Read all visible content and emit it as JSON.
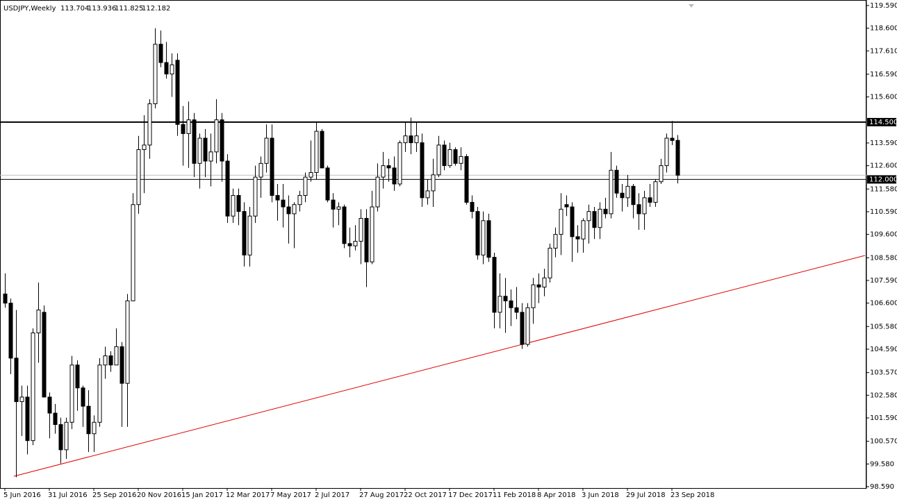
{
  "chart_data": {
    "type": "candlestick",
    "symbol": "USDJPY,Weekly",
    "categories": [
      "5 Jun 2016",
      null,
      null,
      null,
      null,
      null,
      null,
      null,
      "31 Jul 2016",
      null,
      null,
      null,
      null,
      null,
      null,
      null,
      "25 Sep 2016",
      null,
      null,
      null,
      null,
      null,
      null,
      null,
      "20 Nov 2016",
      null,
      null,
      null,
      null,
      null,
      null,
      null,
      "15 Jan 2017",
      null,
      null,
      null,
      null,
      null,
      null,
      null,
      "12 Mar 2017",
      null,
      null,
      null,
      null,
      null,
      null,
      null,
      "7 May 2017",
      null,
      null,
      null,
      null,
      null,
      null,
      null,
      "2 Jul 2017",
      null,
      null,
      null,
      null,
      null,
      null,
      null,
      "27 Aug 2017",
      null,
      null,
      null,
      null,
      null,
      null,
      null,
      "22 Oct 2017",
      null,
      null,
      null,
      null,
      null,
      null,
      null,
      "17 Dec 2017",
      null,
      null,
      null,
      null,
      null,
      null,
      null,
      "11 Feb 2018",
      null,
      null,
      null,
      null,
      null,
      null,
      null,
      "8 Apr 2018",
      null,
      null,
      null,
      null,
      null,
      null,
      null,
      "3 Jun 2018",
      null,
      null,
      null,
      null,
      null,
      null,
      null,
      "29 Jul 2018",
      null,
      null,
      null,
      null,
      null,
      null,
      null,
      "23 Sep 2018",
      null
    ],
    "open": [
      107.0,
      106.6,
      104.2,
      102.3,
      102.5,
      100.6,
      105.3,
      106.2,
      102.5,
      101.8,
      101.3,
      100.2,
      101.4,
      103.9,
      102.9,
      102.1,
      100.9,
      101.4,
      103.9,
      104.3,
      103.9,
      104.7,
      103.1,
      106.7,
      110.9,
      113.3,
      113.5,
      115.3,
      117.9,
      117.1,
      116.6,
      117.2,
      114.4,
      114.0,
      114.6,
      112.7,
      113.8,
      112.8,
      113.2,
      114.6,
      112.8,
      110.4,
      111.3,
      110.6,
      108.7,
      110.4,
      112.1,
      112.7,
      113.8,
      111.3,
      111.1,
      110.8,
      110.5,
      110.9,
      111.3,
      112.1,
      112.3,
      114.1,
      112.5,
      111.1,
      110.7,
      110.8,
      109.2,
      109.1,
      109.3,
      110.3,
      108.4,
      110.8,
      112.1,
      112.6,
      112.5,
      111.8,
      113.6,
      113.9,
      113.6,
      113.6,
      111.2,
      111.5,
      112.2,
      113.5,
      112.6,
      113.3,
      112.7,
      113.0,
      111.0,
      110.6,
      108.7,
      110.2,
      108.6,
      106.2,
      106.9,
      106.7,
      106.4,
      106.2,
      104.8,
      106.4,
      107.4,
      107.3,
      107.7,
      109.0,
      109.6,
      110.9,
      110.8,
      109.5,
      109.4,
      110.2,
      110.6,
      109.9,
      110.7,
      110.5,
      112.4,
      111.4,
      111.2,
      111.7,
      110.9,
      110.5,
      111.2,
      111.0,
      111.9,
      112.6,
      113.8,
      113.704
    ],
    "high": [
      107.9,
      106.8,
      106.3,
      103.0,
      103.0,
      105.5,
      107.5,
      106.5,
      102.7,
      102.2,
      101.6,
      101.6,
      104.3,
      104.1,
      103.0,
      102.8,
      101.7,
      104.2,
      104.7,
      104.5,
      105.5,
      104.9,
      107.0,
      111.4,
      113.9,
      114.8,
      115.5,
      118.6,
      118.5,
      118.0,
      117.5,
      117.5,
      115.2,
      115.4,
      114.9,
      114.0,
      114.2,
      114.0,
      115.5,
      114.9,
      113.1,
      111.6,
      111.6,
      111.0,
      110.8,
      112.6,
      113.0,
      114.4,
      114.4,
      111.8,
      111.8,
      111.3,
      111.0,
      111.5,
      112.3,
      113.7,
      114.5,
      114.2,
      112.6,
      111.4,
      111.0,
      110.9,
      109.9,
      110.0,
      110.7,
      110.7,
      111.5,
      112.7,
      113.2,
      112.9,
      113.0,
      113.7,
      114.5,
      114.7,
      114.5,
      114.0,
      112.0,
      112.9,
      113.9,
      113.7,
      113.6,
      113.4,
      113.4,
      113.1,
      111.3,
      110.8,
      110.6,
      110.5,
      108.8,
      107.9,
      107.7,
      107.2,
      107.3,
      106.6,
      106.6,
      107.7,
      107.9,
      108.1,
      109.2,
      109.9,
      111.4,
      111.3,
      111.0,
      110.0,
      110.3,
      110.9,
      110.8,
      111.0,
      111.2,
      113.2,
      112.6,
      111.8,
      112.2,
      111.8,
      111.4,
      111.5,
      111.8,
      112.0,
      112.9,
      114.0,
      114.55,
      113.936
    ],
    "low": [
      106.4,
      103.5,
      99.0,
      100.8,
      100.0,
      100.4,
      104.0,
      102.5,
      100.7,
      100.9,
      99.6,
      99.8,
      101.1,
      101.9,
      101.2,
      100.1,
      100.1,
      101.2,
      103.3,
      103.6,
      103.9,
      101.2,
      101.2,
      106.7,
      110.5,
      111.4,
      112.9,
      115.1,
      116.9,
      116.4,
      115.6,
      113.9,
      112.6,
      112.5,
      112.1,
      111.6,
      112.1,
      111.7,
      112.7,
      111.9,
      110.1,
      110.1,
      110.0,
      108.2,
      108.2,
      110.1,
      111.2,
      112.3,
      111.0,
      110.2,
      109.9,
      109.2,
      109.0,
      110.6,
      111.0,
      111.9,
      112.0,
      112.5,
      111.0,
      109.9,
      110.0,
      109.0,
      108.6,
      108.9,
      108.3,
      107.3,
      108.3,
      110.6,
      111.6,
      111.9,
      111.5,
      111.7,
      113.2,
      113.1,
      113.2,
      110.8,
      110.9,
      110.8,
      112.1,
      112.4,
      112.5,
      112.6,
      112.4,
      110.9,
      110.3,
      108.5,
      108.3,
      108.4,
      105.5,
      105.5,
      105.3,
      105.6,
      105.9,
      104.6,
      104.7,
      105.7,
      106.6,
      106.9,
      107.5,
      108.6,
      108.7,
      110.4,
      108.4,
      108.8,
      108.8,
      109.2,
      109.4,
      109.4,
      110.3,
      110.3,
      111.2,
      110.6,
      110.8,
      110.3,
      109.8,
      109.8,
      110.8,
      110.8,
      111.8,
      112.3,
      113.5,
      111.825
    ],
    "close": [
      106.6,
      104.2,
      102.3,
      102.5,
      100.6,
      105.3,
      106.3,
      102.5,
      101.8,
      101.3,
      100.2,
      101.4,
      103.9,
      102.9,
      102.1,
      100.9,
      101.4,
      103.9,
      104.3,
      103.9,
      104.7,
      103.1,
      106.7,
      110.9,
      113.3,
      113.5,
      115.3,
      117.9,
      117.1,
      116.6,
      117.0,
      114.4,
      114.0,
      114.6,
      112.7,
      113.8,
      112.8,
      113.2,
      114.6,
      112.8,
      110.4,
      111.3,
      110.6,
      108.7,
      110.4,
      112.1,
      112.7,
      113.8,
      111.3,
      111.1,
      110.8,
      110.5,
      110.9,
      111.3,
      112.1,
      112.3,
      114.1,
      112.5,
      111.1,
      110.7,
      110.8,
      109.2,
      109.1,
      109.3,
      110.3,
      108.4,
      110.8,
      112.1,
      112.6,
      112.5,
      111.8,
      113.6,
      113.9,
      113.6,
      113.9,
      111.2,
      111.5,
      112.2,
      113.5,
      112.6,
      113.3,
      112.7,
      113.0,
      111.0,
      110.6,
      108.7,
      110.2,
      108.6,
      106.2,
      106.9,
      106.7,
      106.4,
      106.2,
      104.8,
      106.4,
      107.4,
      107.3,
      107.7,
      109.0,
      109.6,
      110.7,
      110.8,
      109.5,
      109.4,
      110.2,
      110.6,
      109.9,
      110.7,
      110.5,
      112.4,
      111.4,
      111.2,
      111.7,
      110.9,
      110.5,
      111.2,
      111.0,
      111.9,
      112.6,
      113.8,
      113.7,
      112.182
    ],
    "up_color": "#ffffff",
    "down_color": "#000000",
    "xlim": [
      -0.875,
      155
    ],
    "ylim": [
      98.53,
      119.83
    ],
    "yticks": [
      {
        "value": 119.59,
        "label": "119.590"
      },
      {
        "value": 118.6,
        "label": "118.600"
      },
      {
        "value": 117.61,
        "label": "117.610"
      },
      {
        "value": 116.59,
        "label": "116.590"
      },
      {
        "value": 115.6,
        "label": "115.600"
      },
      {
        "value": 113.59,
        "label": "113.590"
      },
      {
        "value": 112.6,
        "label": "112.600"
      },
      {
        "value": 111.58,
        "label": "111.580"
      },
      {
        "value": 110.59,
        "label": "110.590"
      },
      {
        "value": 109.6,
        "label": "109.600"
      },
      {
        "value": 108.58,
        "label": "108.580"
      },
      {
        "value": 107.59,
        "label": "107.590"
      },
      {
        "value": 106.6,
        "label": "106.600"
      },
      {
        "value": 105.58,
        "label": "105.580"
      },
      {
        "value": 104.59,
        "label": "104.590"
      },
      {
        "value": 103.57,
        "label": "103.570"
      },
      {
        "value": 102.58,
        "label": "102.580"
      },
      {
        "value": 101.59,
        "label": "101.590"
      },
      {
        "value": 100.57,
        "label": "100.570"
      },
      {
        "value": 99.58,
        "label": "99.580"
      },
      {
        "value": 98.59,
        "label": "98.590"
      }
    ],
    "levels": [
      {
        "value": 114.5,
        "label": "114.500",
        "color": "#000000"
      },
      {
        "value": 112.0,
        "label": "112.000",
        "color": "#000000"
      }
    ],
    "trendline": {
      "color": "#e00000",
      "start": [
        1.6,
        99.04
      ],
      "end": [
        154.75,
        108.68
      ]
    }
  }
}
